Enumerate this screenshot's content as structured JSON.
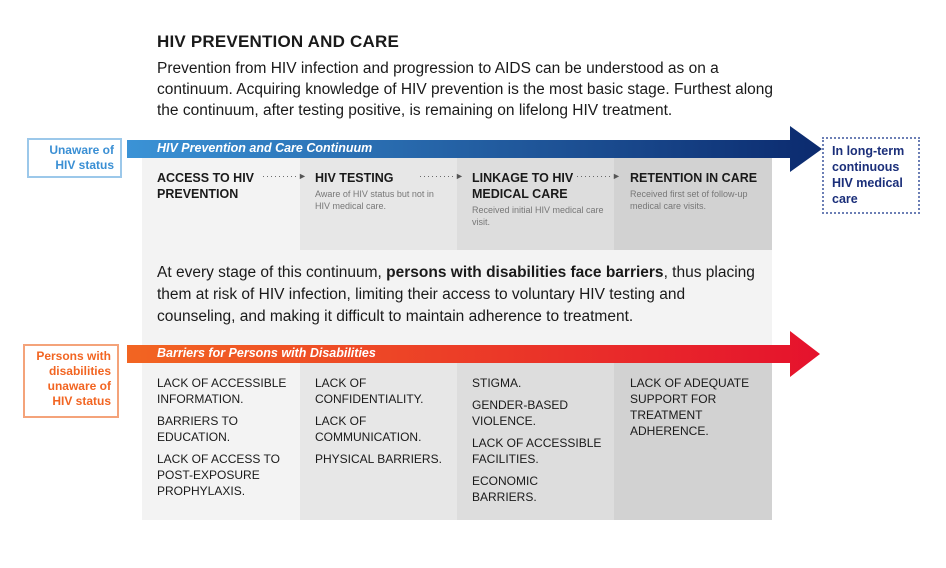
{
  "title": "HIV PREVENTION AND CARE",
  "intro": "Prevention from HIV infection and progression to AIDS can be understood as on a continuum. Acquiring knowledge of HIV prevention is the most basic stage. Furthest along the continuum, after testing positive, is remaining on lifelong HIV treatment.",
  "continuum": {
    "label": "HIV Prevention and Care Continuum",
    "start": "Unaware of HIV status",
    "end": "In long-term continuous HIV medical care",
    "stages": [
      {
        "title": "ACCESS TO HIV PREVENTION",
        "desc": ""
      },
      {
        "title": "HIV TESTING",
        "desc": "Aware of HIV status but not in HIV medical care."
      },
      {
        "title": "LINKAGE TO HIV MEDICAL CARE",
        "desc": "Received initial HIV medical care visit."
      },
      {
        "title": "RETENTION IN CARE",
        "desc": "Received first set of follow-up medical care visits."
      }
    ],
    "arrow_dots": "·········►"
  },
  "middle": {
    "pre": "At every stage of this continuum, ",
    "bold": "persons with disabilities face barriers",
    "post": ", thus placing them at risk of HIV infection, limiting their access to voluntary HIV testing and counseling, and making it difficult to maintain adherence to treatment."
  },
  "barriers": {
    "label": "Barriers for Persons with Disabilities",
    "start": "Persons with disabilities unaware of HIV status",
    "columns": [
      [
        "LACK OF ACCESSIBLE INFORMATION.",
        "BARRIERS TO EDUCATION.",
        "LACK OF ACCESS TO POST-EXPOSURE PROPHYLAXIS."
      ],
      [
        "LACK OF CONFIDENTIALITY.",
        "LACK OF COMMUNICATION.",
        "PHYSICAL BARRIERS."
      ],
      [
        "STIGMA.",
        "GENDER-BASED VIOLENCE.",
        "LACK OF ACCESSIBLE FACILITIES.",
        "ECONOMIC BARRIERS."
      ],
      [
        "LACK OF ADEQUATE SUPPORT FOR TREATMENT ADHERENCE."
      ]
    ]
  },
  "colors": {
    "blue_start": "#3a8fd4",
    "blue_end": "#0b2a6e",
    "orange": "#f26522",
    "red": "#e5122d",
    "start_blue_text": "#3a8fd4",
    "end_navy": "#1b2f7a"
  }
}
